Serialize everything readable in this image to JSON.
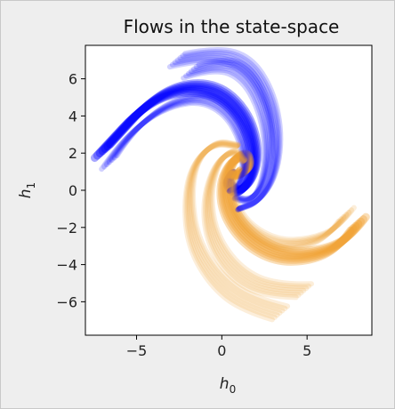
{
  "chart_data": {
    "type": "line",
    "title": "Flows in the state-space",
    "xlabel": "h",
    "xlabel_sub": "0",
    "ylabel": "h",
    "ylabel_sub": "1",
    "xlim": [
      -8.0,
      8.8
    ],
    "ylim": [
      -7.8,
      7.8
    ],
    "xticks": [
      -5,
      0,
      5
    ],
    "yticks": [
      6,
      4,
      2,
      0,
      -2,
      -4,
      -6
    ],
    "grid": false,
    "legend": "none",
    "series": [
      {
        "color": "#0000ff",
        "points": [
          [
            -7.0,
            2.1
          ],
          [
            -6.2,
            2.9
          ],
          [
            -4.8,
            4.3
          ],
          [
            -3.2,
            5.3
          ],
          [
            -1.4,
            5.6
          ],
          [
            0.2,
            5.1
          ],
          [
            1.5,
            3.7
          ],
          [
            2.0,
            1.9
          ],
          [
            1.7,
            0.5
          ],
          [
            0.9,
            -0.2
          ],
          [
            0.3,
            0.4
          ],
          [
            0.6,
            0.9
          ]
        ]
      },
      {
        "color": "#f0a030",
        "points": [
          [
            8.0,
            -1.8
          ],
          [
            7.2,
            -2.8
          ],
          [
            5.6,
            -3.5
          ],
          [
            3.5,
            -3.6
          ],
          [
            1.6,
            -2.7
          ],
          [
            0.3,
            -1.1
          ],
          [
            0.1,
            0.6
          ],
          [
            0.7,
            1.7
          ],
          [
            1.4,
            1.9
          ],
          [
            1.6,
            1.2
          ],
          [
            1.0,
            0.8
          ],
          [
            0.5,
            0.9
          ]
        ]
      },
      {
        "color": "#0000ff",
        "points": [
          [
            -6.6,
            1.5
          ],
          [
            -5.8,
            2.6
          ],
          [
            -4.2,
            4.0
          ],
          [
            -2.6,
            4.8
          ],
          [
            -0.9,
            5.0
          ],
          [
            0.5,
            4.2
          ],
          [
            1.3,
            2.7
          ],
          [
            1.4,
            1.2
          ],
          [
            1.0,
            0.2
          ],
          [
            0.5,
            0.0
          ]
        ]
      },
      {
        "color": "#0000ff",
        "points": [
          [
            -1.8,
            6.4
          ],
          [
            0.0,
            6.9
          ],
          [
            1.6,
            6.2
          ],
          [
            2.6,
            4.2
          ],
          [
            2.8,
            2.0
          ],
          [
            2.4,
            0.2
          ],
          [
            1.6,
            -0.6
          ],
          [
            0.8,
            -0.4
          ]
        ]
      },
      {
        "color": "#f0a030",
        "points": [
          [
            7.3,
            -1.3
          ],
          [
            6.5,
            -2.3
          ],
          [
            4.8,
            -2.9
          ],
          [
            3.0,
            -2.9
          ],
          [
            1.4,
            -2.0
          ],
          [
            0.6,
            -0.7
          ],
          [
            0.6,
            0.5
          ],
          [
            1.0,
            1.1
          ]
        ]
      },
      {
        "color": "#f0a030",
        "points": [
          [
            4.8,
            -5.4
          ],
          [
            2.8,
            -5.4
          ],
          [
            0.8,
            -4.5
          ],
          [
            -0.6,
            -2.6
          ],
          [
            -0.9,
            -0.4
          ],
          [
            -0.3,
            1.5
          ],
          [
            0.7,
            2.2
          ],
          [
            1.3,
            1.6
          ]
        ]
      },
      {
        "color": "#f0a030",
        "points": [
          [
            3.4,
            -6.6
          ],
          [
            1.4,
            -6.1
          ],
          [
            -0.4,
            -4.8
          ],
          [
            -1.7,
            -2.8
          ],
          [
            -2.0,
            -0.4
          ],
          [
            -1.6,
            1.5
          ],
          [
            -0.4,
            2.6
          ],
          [
            0.9,
            2.4
          ]
        ]
      },
      {
        "color": "#0000ff",
        "points": [
          [
            -2.6,
            7.0
          ],
          [
            -0.6,
            7.4
          ],
          [
            1.4,
            6.9
          ],
          [
            2.7,
            5.2
          ],
          [
            3.3,
            3.0
          ],
          [
            3.1,
            0.8
          ],
          [
            2.2,
            -0.6
          ],
          [
            1.0,
            -1.0
          ]
        ]
      }
    ]
  }
}
